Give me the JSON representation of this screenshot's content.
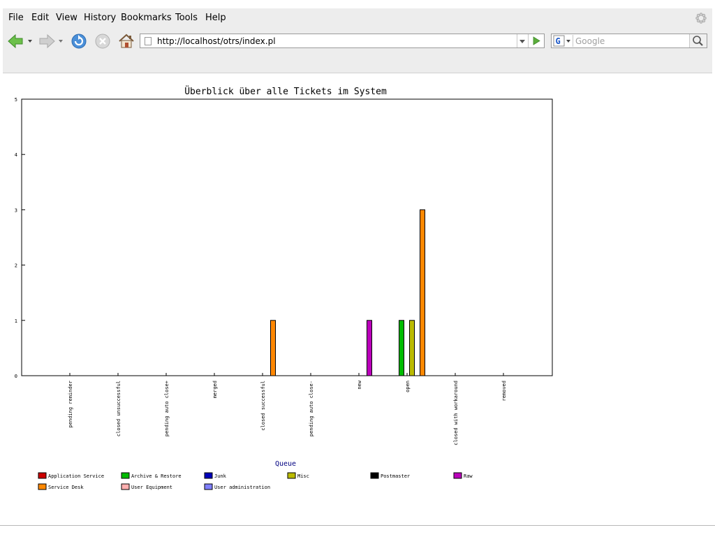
{
  "browser": {
    "menu": [
      "File",
      "Edit",
      "View",
      "History",
      "Bookmarks",
      "Tools",
      "Help"
    ],
    "url": "http://localhost/otrs/index.pl",
    "search_placeholder": "Google",
    "icons": {
      "back": "back-arrow-icon",
      "forward": "forward-arrow-icon",
      "reload": "reload-icon",
      "stop": "stop-icon",
      "home": "home-icon",
      "go": "go-arrow-icon",
      "search_engine": "google-icon",
      "search": "magnifier-icon",
      "throbber": "throbber-icon"
    }
  },
  "chart_data": {
    "type": "bar",
    "title": "Überblick über alle Tickets im System",
    "xlabel": "Queue",
    "ylabel": "",
    "ylim": [
      0,
      5
    ],
    "yticks": [
      "0",
      "1",
      "2",
      "3",
      "4",
      "5"
    ],
    "grid": false,
    "legend_position": "bottom",
    "categories": [
      "pending reminder",
      "closed unsuccessful",
      "pending auto close+",
      "merged",
      "closed successful",
      "pending auto close-",
      "new",
      "open",
      "closed with workaround",
      "removed"
    ],
    "series": [
      {
        "name": "Application Service",
        "color": "#cc0000",
        "values": [
          0,
          0,
          0,
          0,
          0,
          0,
          0,
          0,
          0,
          0
        ]
      },
      {
        "name": "Archive & Restore",
        "color": "#00bb00",
        "values": [
          0,
          0,
          0,
          0,
          0,
          0,
          0,
          1,
          0,
          0
        ]
      },
      {
        "name": "Junk",
        "color": "#0000bb",
        "values": [
          0,
          0,
          0,
          0,
          0,
          0,
          0,
          0,
          0,
          0
        ]
      },
      {
        "name": "Misc",
        "color": "#bbbb00",
        "values": [
          0,
          0,
          0,
          0,
          0,
          0,
          0,
          1,
          0,
          0
        ]
      },
      {
        "name": "Postmaster",
        "color": "#000000",
        "values": [
          0,
          0,
          0,
          0,
          0,
          0,
          0,
          0,
          0,
          0
        ]
      },
      {
        "name": "Raw",
        "color": "#bb00bb",
        "values": [
          0,
          0,
          0,
          0,
          0,
          0,
          1,
          0,
          0,
          0
        ]
      },
      {
        "name": "Service Desk",
        "color": "#ff8800",
        "values": [
          0,
          0,
          0,
          0,
          1,
          0,
          0,
          3,
          0,
          0
        ]
      },
      {
        "name": "User Equipment",
        "color": "#ffb0b0",
        "values": [
          0,
          0,
          0,
          0,
          0,
          0,
          0,
          0,
          0,
          0
        ]
      },
      {
        "name": "User administration",
        "color": "#8080ff",
        "values": [
          0,
          0,
          0,
          0,
          0,
          0,
          0,
          0,
          0,
          0
        ]
      }
    ]
  }
}
